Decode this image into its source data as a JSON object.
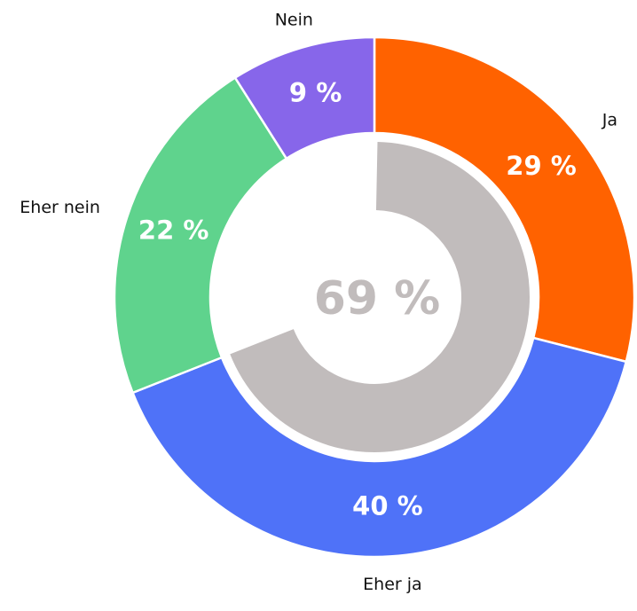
{
  "chart_data": {
    "type": "donut",
    "categories": [
      "Ja",
      "Eher ja",
      "Eher nein",
      "Nein"
    ],
    "values": [
      29,
      40,
      22,
      9
    ],
    "value_labels": [
      "29 %",
      "40 %",
      "22 %",
      "9 %"
    ],
    "colors": [
      "#ff6200",
      "#4f72f8",
      "#5fd38d",
      "#8766ea"
    ],
    "inner": {
      "value": 69,
      "label": "69 %",
      "color": "#c1bcbc"
    }
  }
}
